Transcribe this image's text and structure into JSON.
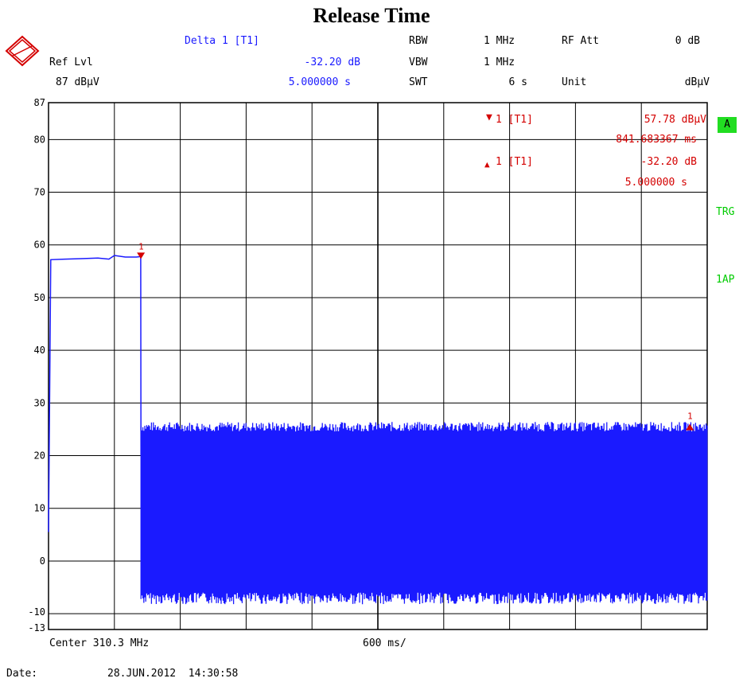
{
  "title": "Release Time",
  "header": {
    "delta_label": "Delta 1 [T1]",
    "delta_level": "-32.20 dB",
    "delta_time": "5.000000 s",
    "ref_lvl_label": "Ref Lvl",
    "ref_lvl_value": "87 dBµV",
    "rbw_label": "RBW",
    "rbw_value": "1 MHz",
    "vbw_label": "VBW",
    "vbw_value": "1 MHz",
    "swt_label": "SWT",
    "swt_value": "6 s",
    "rf_att_label": "RF Att",
    "rf_att_value": "0 dB",
    "unit_label": "Unit",
    "unit_value": "dBµV"
  },
  "markers": {
    "m1_label": "1 [T1]",
    "m1_level": "57.78 dBµV",
    "m1_time": "841.683367 ms",
    "d1_label": "1 [T1]",
    "d1_level": "-32.20 dB",
    "d1_time": "5.000000 s",
    "marker1_num": "1",
    "delta1_num": "1"
  },
  "side": {
    "trace_badge": "A",
    "trg": "TRG",
    "ap": "1AP"
  },
  "footer": {
    "center": "Center 310.3 MHz",
    "per_div": "600 ms/",
    "date_label": "Date:",
    "date_value": "28.JUN.2012  14:30:58"
  },
  "colors": {
    "trace": "#1a1aff",
    "marker": "#d40000",
    "grid": "#000000",
    "badge_bg": "#22dd22"
  },
  "chart_data": {
    "type": "line",
    "title": "Release Time",
    "xlabel": "600 ms/",
    "ylabel": "",
    "x_unit": "s",
    "xlim": [
      0,
      6
    ],
    "ylim": [
      -13,
      87
    ],
    "y_ticks": [
      87,
      80,
      70,
      60,
      50,
      40,
      30,
      20,
      10,
      0,
      -10,
      -13
    ],
    "grid": true,
    "series": [
      {
        "x": [
          0.0,
          0.02,
          0.15,
          0.3,
          0.45,
          0.55,
          0.6,
          0.7,
          0.8,
          0.84,
          0.842,
          6.0
        ],
        "values": [
          5.5,
          57.2,
          57.3,
          57.4,
          57.5,
          57.3,
          58.0,
          57.7,
          57.7,
          57.78,
          20,
          20
        ],
        "band_after_x": 0.842,
        "band_range": [
          -7,
          25.5
        ]
      }
    ],
    "markers": [
      {
        "name": "1",
        "x": 0.841683367,
        "y": 57.78,
        "shape": "down-triangle"
      },
      {
        "name": "1",
        "x": 5.841683367,
        "y": 25.58,
        "shape": "up-triangle",
        "delta_db": -32.2
      }
    ]
  }
}
